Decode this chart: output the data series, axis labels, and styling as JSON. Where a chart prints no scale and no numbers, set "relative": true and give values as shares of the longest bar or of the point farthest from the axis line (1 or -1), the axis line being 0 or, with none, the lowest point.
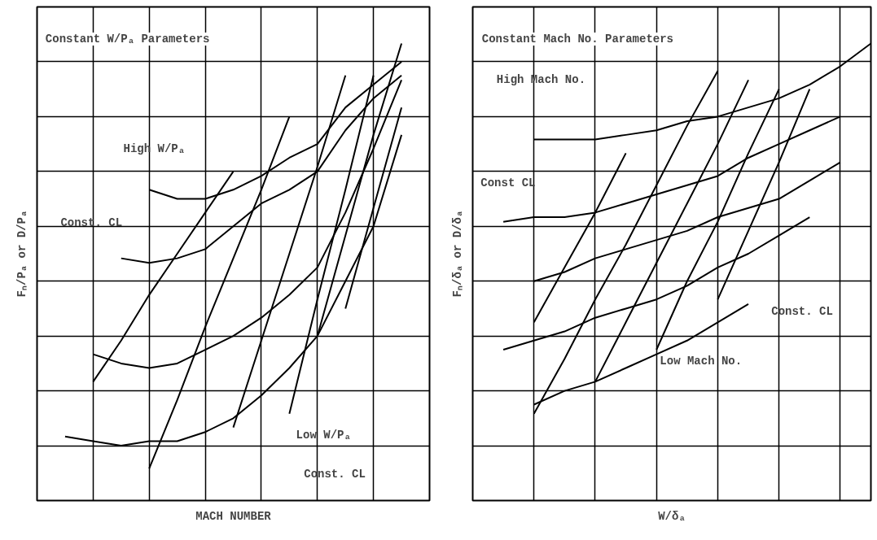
{
  "chart_data": [
    {
      "type": "line",
      "relative": true,
      "grid": true,
      "title": "Constant W/Pₐ Parameters",
      "xlabel": "MACH NUMBER",
      "ylabel": "Fₙ/Pₐ or D/Pₐ",
      "annotations": [
        "High W/Pₐ",
        "Const. CL",
        "Low W/Pₐ",
        "Const. CL"
      ],
      "categories": [
        null,
        null,
        null,
        null,
        null,
        null,
        null,
        null,
        null,
        null,
        null,
        null,
        null,
        null,
        null
      ],
      "series": [
        {
          "color": "#000000",
          "values": [
            null,
            null,
            null,
            null,
            0.68,
            0.66,
            0.66,
            0.68,
            0.71,
            0.75,
            0.78,
            0.86,
            0.91,
            0.96,
            null
          ]
        },
        {
          "color": "#000000",
          "values": [
            null,
            null,
            null,
            0.53,
            0.52,
            0.53,
            0.55,
            0.6,
            0.65,
            0.68,
            0.72,
            0.81,
            0.88,
            0.93,
            null
          ]
        },
        {
          "color": "#000000",
          "values": [
            null,
            null,
            0.32,
            0.3,
            0.29,
            0.3,
            0.33,
            0.36,
            0.4,
            0.45,
            0.51,
            0.63,
            0.77,
            0.92,
            null
          ]
        },
        {
          "color": "#000000",
          "values": [
            null,
            0.14,
            0.13,
            0.12,
            0.13,
            0.13,
            0.15,
            0.18,
            0.23,
            0.29,
            0.36,
            0.48,
            0.6,
            0.8,
            null
          ]
        },
        {
          "color": "#000000",
          "values": [
            null,
            null,
            0.26,
            0.35,
            0.45,
            0.54,
            0.63,
            0.72,
            null,
            null,
            null,
            null,
            null,
            null,
            null
          ]
        },
        {
          "color": "#000000",
          "values": [
            null,
            null,
            null,
            null,
            0.07,
            0.22,
            0.38,
            0.53,
            0.68,
            0.84,
            null,
            null,
            null,
            null,
            null
          ]
        },
        {
          "color": "#000000",
          "values": [
            null,
            null,
            null,
            null,
            null,
            null,
            null,
            0.16,
            0.35,
            0.54,
            0.73,
            0.93,
            null,
            null,
            null
          ]
        },
        {
          "color": "#000000",
          "values": [
            null,
            null,
            null,
            null,
            null,
            null,
            null,
            null,
            null,
            0.19,
            0.44,
            0.68,
            0.93,
            null,
            null
          ]
        },
        {
          "color": "#000000",
          "values": [
            null,
            null,
            null,
            null,
            null,
            null,
            null,
            null,
            null,
            null,
            0.36,
            0.58,
            0.8,
            1.0,
            null
          ]
        },
        {
          "color": "#000000",
          "values": [
            null,
            null,
            null,
            null,
            null,
            null,
            null,
            null,
            null,
            null,
            null,
            0.42,
            0.64,
            0.86,
            null
          ]
        }
      ]
    },
    {
      "type": "line",
      "relative": true,
      "grid": true,
      "title": "Constant Mach No. Parameters",
      "xlabel": "W/δₐ",
      "ylabel": "Fₙ/δₐ or D/δₐ",
      "annotations": [
        "High Mach No.",
        "Const CL",
        "Const. CL",
        "Low Mach No."
      ],
      "categories": [
        null,
        null,
        null,
        null,
        null,
        null,
        null,
        null,
        null,
        null,
        null,
        null,
        null,
        null
      ],
      "series": [
        {
          "color": "#000000",
          "values": [
            null,
            null,
            0.79,
            0.79,
            0.79,
            0.8,
            0.81,
            0.83,
            0.84,
            0.86,
            0.88,
            0.91,
            0.95,
            1.0
          ]
        },
        {
          "color": "#000000",
          "values": [
            null,
            0.61,
            0.62,
            0.62,
            0.63,
            0.65,
            0.67,
            0.69,
            0.71,
            0.75,
            0.78,
            0.81,
            0.84,
            null
          ]
        },
        {
          "color": "#000000",
          "values": [
            null,
            null,
            0.48,
            0.5,
            0.53,
            0.55,
            0.57,
            0.59,
            0.62,
            0.64,
            0.66,
            0.7,
            0.74,
            null
          ]
        },
        {
          "color": "#000000",
          "values": [
            null,
            0.33,
            0.35,
            0.37,
            0.4,
            0.42,
            0.44,
            0.47,
            0.51,
            0.54,
            0.58,
            0.62,
            null,
            null
          ]
        },
        {
          "color": "#000000",
          "values": [
            null,
            null,
            0.21,
            0.24,
            0.26,
            0.29,
            0.32,
            0.35,
            0.39,
            0.43,
            null,
            null,
            null,
            null
          ]
        },
        {
          "color": "#000000",
          "values": [
            null,
            null,
            0.39,
            0.51,
            0.63,
            0.76,
            null,
            null,
            null,
            null,
            null,
            null,
            null,
            null
          ]
        },
        {
          "color": "#000000",
          "values": [
            null,
            null,
            0.19,
            0.31,
            0.44,
            0.56,
            0.69,
            0.82,
            0.94,
            null,
            null,
            null,
            null,
            null
          ]
        },
        {
          "color": "#000000",
          "values": [
            null,
            null,
            null,
            null,
            0.26,
            0.39,
            0.52,
            0.65,
            0.78,
            0.92,
            null,
            null,
            null,
            null
          ]
        },
        {
          "color": "#000000",
          "values": [
            null,
            null,
            null,
            null,
            null,
            null,
            0.33,
            0.48,
            0.61,
            0.76,
            0.9,
            null,
            null,
            null
          ]
        },
        {
          "color": "#000000",
          "values": [
            null,
            null,
            null,
            null,
            null,
            null,
            null,
            null,
            0.44,
            0.59,
            0.74,
            0.9,
            null,
            null
          ]
        }
      ]
    }
  ]
}
